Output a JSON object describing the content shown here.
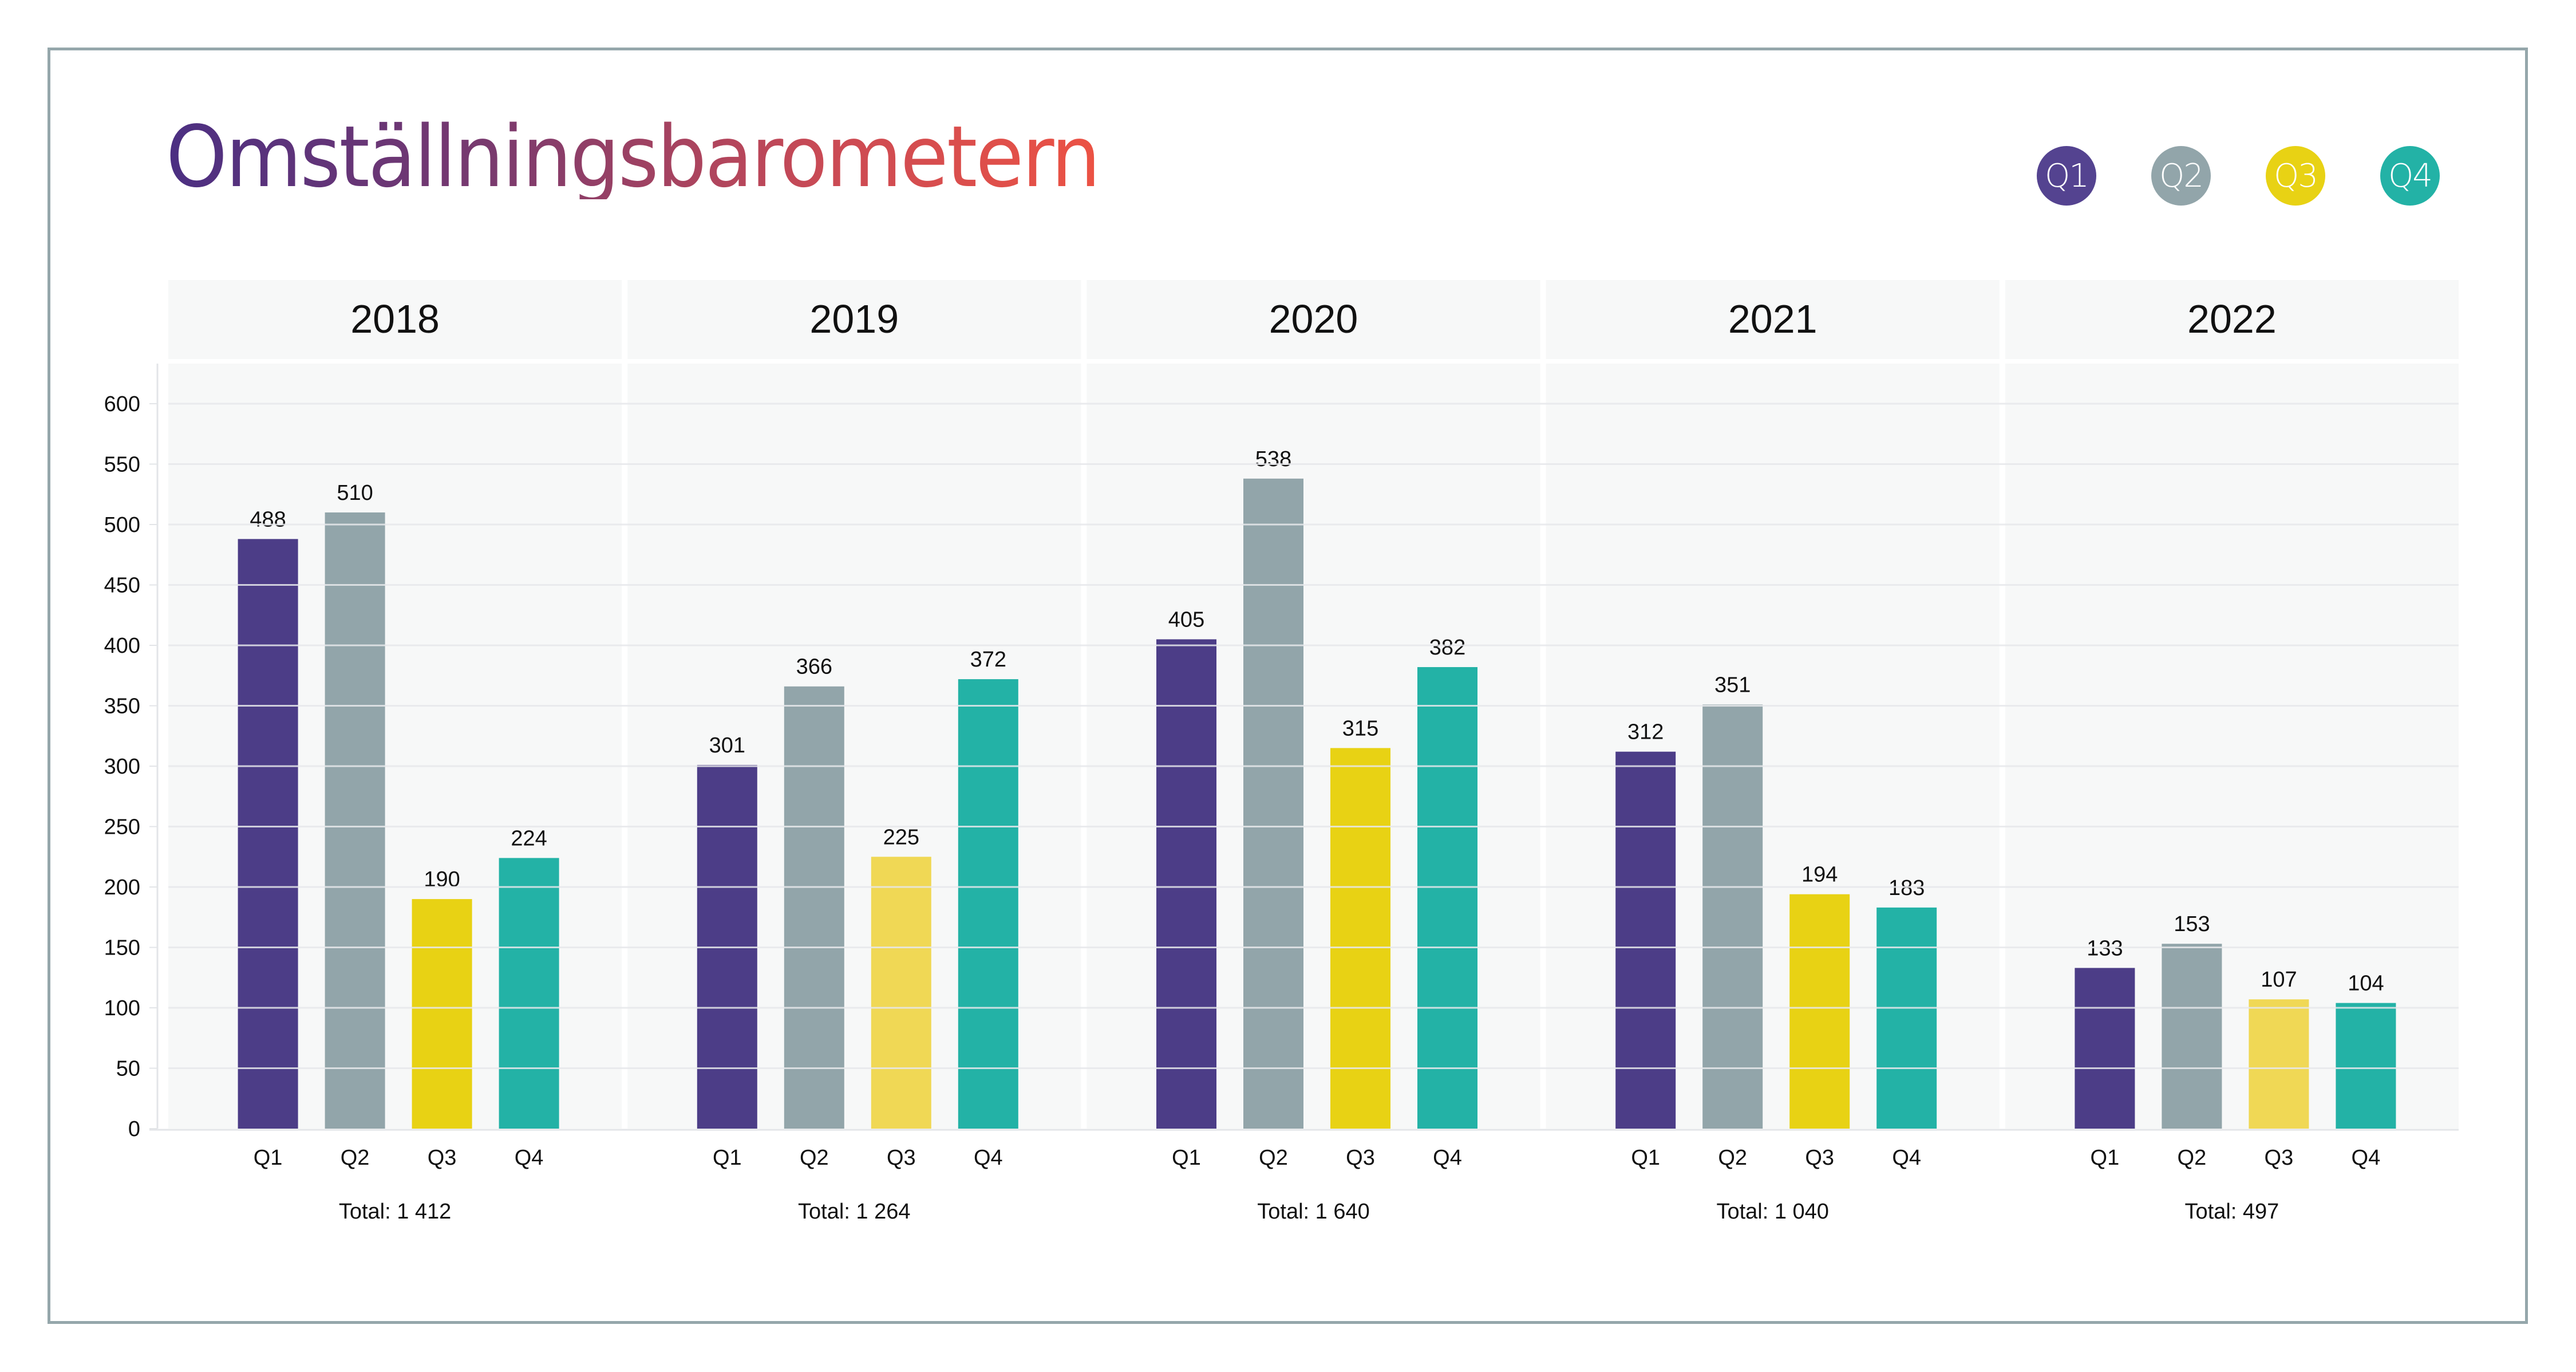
{
  "title": "Omställningsbarometern",
  "legend": [
    {
      "label": "Q1",
      "color": "#544390"
    },
    {
      "label": "Q2",
      "color": "#92A5AA"
    },
    {
      "label": "Q3",
      "color": "#E8D214"
    },
    {
      "label": "Q4",
      "color": "#23B2A6"
    }
  ],
  "chart_data": {
    "type": "bar",
    "title": "Omställningsbarometern",
    "xlabel": "",
    "ylabel": "",
    "ylim": [
      0,
      600
    ],
    "yticks": [
      0,
      50,
      100,
      150,
      200,
      250,
      300,
      350,
      400,
      450,
      500,
      550,
      600
    ],
    "grid": true,
    "legend_position": "top-right",
    "facets": [
      "2018",
      "2019",
      "2020",
      "2021",
      "2022"
    ],
    "categories": [
      "Q1",
      "Q2",
      "Q3",
      "Q4"
    ],
    "series_colors": {
      "Q1": "#4C3D87",
      "Q2": "#92A5AA",
      "Q3": "#E8D214",
      "Q3_light": "#F0D855",
      "Q4": "#23B2A6"
    },
    "groups": [
      {
        "year": "2018",
        "values": [
          488,
          510,
          190,
          224
        ],
        "total_label": "Total: 1 412",
        "q3_light": false
      },
      {
        "year": "2019",
        "values": [
          301,
          366,
          225,
          372
        ],
        "total_label": "Total: 1 264",
        "q3_light": true
      },
      {
        "year": "2020",
        "values": [
          405,
          538,
          315,
          382
        ],
        "total_label": "Total: 1 640",
        "q3_light": false
      },
      {
        "year": "2021",
        "values": [
          312,
          351,
          194,
          183
        ],
        "total_label": "Total: 1 040",
        "q3_light": false
      },
      {
        "year": "2022",
        "values": [
          133,
          153,
          107,
          104
        ],
        "total_label": "Total: 497",
        "q3_light": true
      }
    ]
  }
}
